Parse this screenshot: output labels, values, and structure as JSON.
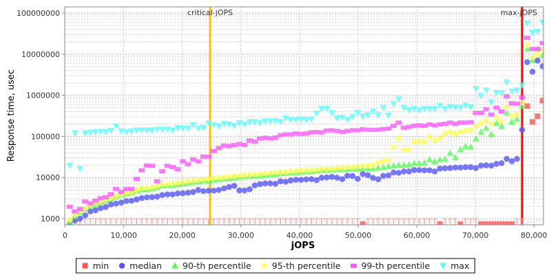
{
  "chart_data": {
    "type": "scatter",
    "title": "",
    "xlabel": "jOPS",
    "ylabel": "Response time, usec",
    "xlim": [
      0,
      81600
    ],
    "ylim": [
      700,
      140000000
    ],
    "yscale": "log",
    "grid": true,
    "legend_position": "bottom",
    "x_ticks": [
      "0",
      "10,000",
      "20,000",
      "30,000",
      "40,000",
      "50,000",
      "60,000",
      "70,000",
      "80,000"
    ],
    "x_tick_values": [
      0,
      10000,
      20000,
      30000,
      40000,
      50000,
      60000,
      70000,
      80000
    ],
    "y_ticks": [
      "1000",
      "10000",
      "100000",
      "1000000",
      "10000000",
      "100000000"
    ],
    "y_tick_values": [
      1000,
      10000,
      100000,
      1000000,
      10000000,
      100000000
    ],
    "annotations": [
      {
        "label": "critical-jOPS",
        "x": 24740,
        "color": "#ffc000"
      },
      {
        "label": "max-jOPS",
        "x": 77970,
        "color": "#ff0000"
      }
    ],
    "x": [
      800,
      1677,
      2554,
      3431,
      4308,
      5185,
      6062,
      6939,
      7816,
      8693,
      9570,
      10447,
      11324,
      12201,
      13078,
      13955,
      14832,
      15709,
      16586,
      17463,
      18340,
      19217,
      20094,
      20971,
      21848,
      22725,
      23602,
      24479,
      25356,
      26233,
      27110,
      27987,
      28864,
      29741,
      30618,
      31495,
      32372,
      33249,
      34126,
      35003,
      35880,
      36757,
      37634,
      38511,
      39388,
      40265,
      41142,
      42019,
      42896,
      43773,
      44650,
      45527,
      46404,
      47281,
      48158,
      49035,
      49912,
      50789,
      51666,
      52543,
      53420,
      54297,
      55174,
      56051,
      56928,
      57805,
      58682,
      59559,
      60436,
      61313,
      62190,
      63067,
      63944,
      64821,
      65698,
      66575,
      67452,
      68329,
      69206,
      70083,
      70960,
      71837,
      72714,
      73591,
      74468,
      75345,
      76222,
      77099,
      77976,
      78853,
      79730,
      80607,
      81484
    ],
    "series": [
      {
        "name": "min",
        "color": "#ff5555",
        "marker": "square",
        "values": [
          1000,
          1000,
          1000,
          1000,
          1000,
          1000,
          1000,
          1000,
          1000,
          1000,
          1000,
          1000,
          1000,
          1000,
          1000,
          1000,
          1000,
          1000,
          1000,
          1000,
          1000,
          1000,
          1000,
          1000,
          1000,
          1000,
          1000,
          1000,
          1000,
          1000,
          1000,
          1000,
          1000,
          1000,
          1000,
          1000,
          1000,
          1000,
          1000,
          1000,
          1000,
          1000,
          1000,
          1000,
          1000,
          1000,
          1000,
          1000,
          1000,
          1000,
          1000,
          1000,
          1000,
          1000,
          1000,
          1000,
          1000,
          700,
          1000,
          1000,
          1000,
          1000,
          1000,
          1000,
          1000,
          1000,
          1000,
          1000,
          1000,
          1000,
          1000,
          1000,
          700,
          1000,
          1000,
          1000,
          700,
          1000,
          1000,
          1000,
          700,
          700,
          700,
          700,
          700,
          700,
          700,
          1000,
          1000,
          545000,
          226000,
          310000,
          740000
        ]
      },
      {
        "name": "median",
        "color": "#5555ff",
        "marker": "circle",
        "values": [
          740,
          900,
          1000,
          1200,
          1500,
          1600,
          1800,
          1920,
          2220,
          2330,
          2450,
          2690,
          2720,
          2930,
          3170,
          3300,
          3340,
          3430,
          3750,
          3900,
          3900,
          4100,
          4150,
          4270,
          4430,
          4970,
          4680,
          4800,
          4800,
          4970,
          5440,
          5900,
          6270,
          4860,
          4860,
          5180,
          6440,
          6900,
          7200,
          7200,
          7050,
          8100,
          7900,
          8500,
          8800,
          8800,
          9000,
          9150,
          8650,
          9900,
          10100,
          10400,
          9900,
          9150,
          11000,
          10900,
          9300,
          12200,
          11400,
          9800,
          9100,
          11000,
          11300,
          13300,
          13000,
          14100,
          14100,
          15200,
          15200,
          15000,
          15000,
          14100,
          16600,
          16800,
          17000,
          17500,
          17500,
          17900,
          17900,
          17000,
          19500,
          19800,
          19500,
          21500,
          22400,
          28600,
          25000,
          28500,
          145000,
          6400000,
          3750000,
          7000000,
          5100000
        ]
      },
      {
        "name": "90-th percentile",
        "color": "#55ff55",
        "marker": "triangle-up",
        "values": [
          860,
          1150,
          1430,
          1710,
          2050,
          2220,
          2520,
          2720,
          3060,
          3430,
          3850,
          4000,
          4320,
          4860,
          5100,
          5100,
          5370,
          5800,
          6350,
          6400,
          6600,
          6800,
          7200,
          7400,
          7800,
          7900,
          8400,
          8400,
          8900,
          9100,
          9300,
          9600,
          10000,
          10300,
          10600,
          10900,
          11000,
          11200,
          11500,
          11800,
          12200,
          12600,
          12800,
          13000,
          13300,
          13700,
          14000,
          14200,
          14700,
          15200,
          15400,
          15600,
          15700,
          15800,
          16000,
          16200,
          16500,
          16800,
          16800,
          16800,
          17200,
          17700,
          18900,
          19600,
          20200,
          20200,
          20700,
          22400,
          22400,
          22900,
          27500,
          24500,
          27500,
          28500,
          39600,
          31000,
          48000,
          57500,
          55000,
          88000,
          128000,
          159000,
          114000,
          213000,
          176000,
          372000,
          228000,
          269000,
          546000,
          13600000,
          7200000,
          13600000,
          9500000
        ]
      },
      {
        "name": "95-th percentile",
        "color": "#ffff55",
        "marker": "diamond",
        "values": [
          950,
          1250,
          1550,
          1800,
          2150,
          2400,
          2700,
          2900,
          3200,
          3600,
          3900,
          4200,
          4500,
          5000,
          5500,
          5600,
          5800,
          6300,
          6800,
          6900,
          7100,
          7400,
          7800,
          8100,
          8400,
          8700,
          9000,
          9300,
          9600,
          9900,
          10100,
          10500,
          10900,
          11100,
          11400,
          11700,
          12100,
          12400,
          12700,
          13000,
          13200,
          13500,
          13800,
          14100,
          14500,
          14800,
          15100,
          15300,
          15600,
          15900,
          16200,
          16500,
          16900,
          17400,
          17800,
          18100,
          18500,
          19300,
          19900,
          20200,
          23000,
          25400,
          26800,
          55000,
          91000,
          48000,
          48000,
          75000,
          75000,
          75000,
          98000,
          79000,
          93000,
          116000,
          130000,
          116000,
          129000,
          139000,
          141000,
          176000,
          208000,
          246000,
          203000,
          290000,
          238000,
          530000,
          315000,
          350000,
          670000,
          16800000,
          8300000,
          10000000,
          12600000
        ]
      },
      {
        "name": "99-th percentile",
        "color": "#ff55ff",
        "marker": "rect",
        "values": [
          1950,
          1500,
          1710,
          2590,
          2360,
          2750,
          3140,
          3300,
          3950,
          5250,
          4430,
          5250,
          5250,
          9300,
          15000,
          19600,
          19200,
          8100,
          14200,
          19200,
          17900,
          16000,
          24700,
          21100,
          27800,
          24700,
          32300,
          32300,
          44000,
          52000,
          60000,
          59000,
          61500,
          65500,
          62000,
          80000,
          75000,
          89000,
          93000,
          89000,
          94000,
          107000,
          112000,
          112000,
          118000,
          115000,
          118000,
          126000,
          128000,
          126000,
          139000,
          141000,
          136000,
          129000,
          136000,
          141000,
          141000,
          149000,
          146000,
          144000,
          146000,
          151000,
          155000,
          181000,
          217000,
          163000,
          170000,
          181000,
          186000,
          181000,
          195000,
          186000,
          195000,
          203000,
          217000,
          203000,
          217000,
          217000,
          222000,
          375000,
          375000,
          460000,
          340000,
          500000,
          407000,
          950000,
          640000,
          625000,
          890000,
          25000000,
          13400000,
          13400000,
          18700000
        ]
      },
      {
        "name": "max",
        "color": "#55ffff",
        "marker": "triangle-down",
        "values": [
          19600,
          121000,
          16400,
          121000,
          124000,
          129000,
          131000,
          129000,
          139000,
          179000,
          134000,
          129000,
          134000,
          141000,
          141000,
          141000,
          141000,
          147000,
          147000,
          147000,
          141000,
          161000,
          157000,
          157000,
          190000,
          157000,
          161000,
          208000,
          190000,
          176000,
          205000,
          197000,
          181000,
          213000,
          197000,
          226000,
          224000,
          213000,
          235000,
          235000,
          237000,
          226000,
          275000,
          252000,
          252000,
          262000,
          252000,
          262000,
          366000,
          475000,
          475000,
          372000,
          275000,
          292000,
          255000,
          302000,
          375000,
          310000,
          330000,
          402000,
          330000,
          500000,
          322000,
          620000,
          810000,
          500000,
          440000,
          470000,
          435000,
          470000,
          470000,
          470000,
          560000,
          470000,
          530000,
          500000,
          500000,
          575000,
          515000,
          1450000,
          970000,
          1330000,
          680000,
          1150000,
          1150000,
          2100000,
          1240000,
          1330000,
          1740000,
          56700000,
          33000000,
          35500000,
          59000000
        ]
      }
    ]
  }
}
